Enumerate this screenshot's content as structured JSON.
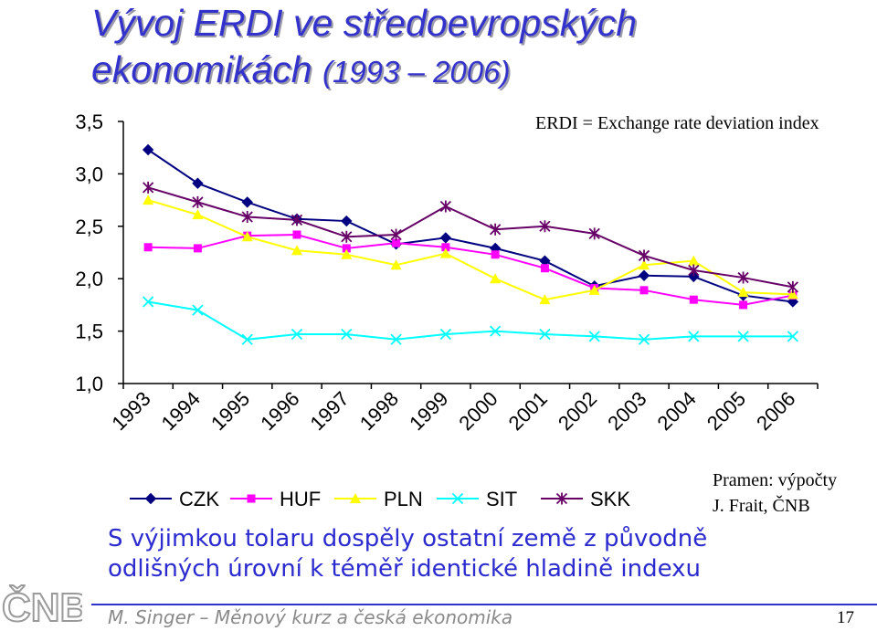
{
  "slide": {
    "title_line1": "Vývoj ERDI ve středoevropských",
    "title_line2": "ekonomikách",
    "title_years": "(1993 – 2006)",
    "note": "ERDI = Exchange rate deviation index",
    "source_line1": "Pramen: výpočty",
    "source_line2": "J. Frait, ČNB",
    "conclusion_line1": "S výjimkou tolaru dospěly ostatní země z původně",
    "conclusion_line2": "odlišných úrovní k téměř identické hladině indexu",
    "footer": "M. Singer – Měnový kurz a česká ekonomika",
    "page_number": "17",
    "logo_text": "ČNB"
  },
  "chart_data": {
    "type": "line",
    "categories": [
      "1993",
      "1994",
      "1995",
      "1996",
      "1997",
      "1998",
      "1999",
      "2000",
      "2001",
      "2002",
      "2003",
      "2004",
      "2005",
      "2006"
    ],
    "ylim": [
      1.0,
      3.5
    ],
    "yticks": [
      "1,0",
      "1,5",
      "2,0",
      "2,5",
      "3,0",
      "3,5"
    ],
    "ytick_values": [
      1.0,
      1.5,
      2.0,
      2.5,
      3.0,
      3.5
    ],
    "grid": false,
    "legend_position": "bottom",
    "series": [
      {
        "name": "CZK",
        "marker": "diamond",
        "color": "#000080",
        "values": [
          3.23,
          2.91,
          2.73,
          2.57,
          2.55,
          2.33,
          2.39,
          2.29,
          2.17,
          1.93,
          2.03,
          2.02,
          1.84,
          1.78
        ]
      },
      {
        "name": "HUF",
        "marker": "square",
        "color": "#ff00ff",
        "values": [
          2.3,
          2.29,
          2.41,
          2.42,
          2.29,
          2.34,
          2.3,
          2.23,
          2.1,
          1.91,
          1.89,
          1.8,
          1.75,
          1.84
        ]
      },
      {
        "name": "PLN",
        "marker": "triangle",
        "color": "#ffff00",
        "values": [
          2.75,
          2.61,
          2.4,
          2.27,
          2.23,
          2.13,
          2.24,
          2.0,
          1.8,
          1.89,
          2.13,
          2.17,
          1.87,
          1.85
        ]
      },
      {
        "name": "SIT",
        "marker": "x",
        "color": "#00ffff",
        "values": [
          1.78,
          1.7,
          1.42,
          1.47,
          1.47,
          1.42,
          1.47,
          1.5,
          1.47,
          1.45,
          1.42,
          1.45,
          1.45,
          1.45
        ]
      },
      {
        "name": "SKK",
        "marker": "star",
        "color": "#660066",
        "values": [
          2.87,
          2.73,
          2.59,
          2.56,
          2.4,
          2.42,
          2.69,
          2.47,
          2.5,
          2.43,
          2.22,
          2.08,
          2.01,
          1.92
        ]
      }
    ]
  }
}
